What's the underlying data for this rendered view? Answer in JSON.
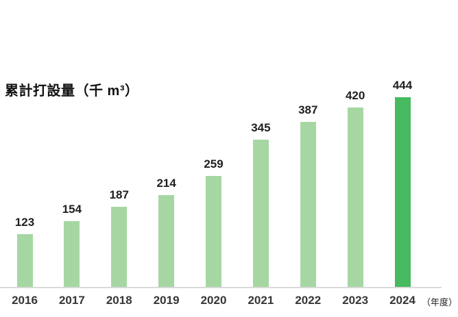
{
  "chart_data": {
    "type": "bar",
    "title": "累計打設量（千 m³）",
    "xlabel": "（年度）",
    "ylabel": "",
    "categories": [
      "2016",
      "2017",
      "2018",
      "2019",
      "2020",
      "2021",
      "2022",
      "2023",
      "2024"
    ],
    "values": [
      123,
      154,
      187,
      214,
      259,
      345,
      387,
      420,
      444
    ],
    "ylim": [
      0,
      444
    ],
    "grid": false,
    "legend_position": "none",
    "value_labels_shown": true,
    "highlight_index": 8,
    "colors": {
      "bar": "#a6d7a3",
      "bar_highlight": "#47b960",
      "axis_line": "#d9d9d9",
      "value_label": "#1f1f1f",
      "tick_label": "#363636",
      "title": "#111111"
    }
  }
}
